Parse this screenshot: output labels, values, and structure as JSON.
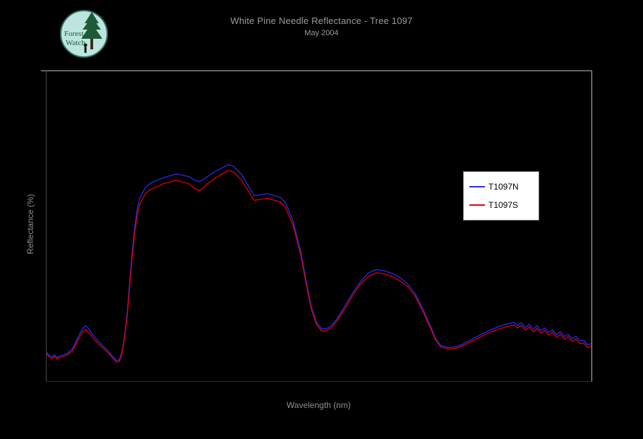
{
  "title": {
    "line1": "White Pine Needle Reflectance - Tree 1097",
    "line2": "May 2004"
  },
  "logo": {
    "line1": "Forest",
    "line2": "Watch"
  },
  "axes": {
    "x_label": "Wavelength (nm)",
    "y_label": "Reflectance (%)"
  },
  "legend": {
    "items": [
      {
        "label": "T1097N",
        "color": "#2a2aee"
      },
      {
        "label": "T1097S",
        "color": "#e00000"
      }
    ]
  },
  "colors": {
    "background": "#000000",
    "plot_border": "#b8b8b8",
    "legend_background": "#ffffff",
    "title_text": "#9c9c9c"
  },
  "chart_data": {
    "type": "line",
    "title": "White Pine Needle Reflectance - Tree 1097",
    "subtitle": "May 2004",
    "xlabel": "Wavelength (nm)",
    "ylabel": "Reflectance (%)",
    "xlim": [
      400,
      2500
    ],
    "ylim": [
      0,
      60
    ],
    "grid": false,
    "legend_position": "right-center",
    "x": [
      400,
      410,
      420,
      430,
      440,
      450,
      460,
      470,
      480,
      500,
      520,
      540,
      550,
      560,
      580,
      600,
      620,
      640,
      660,
      670,
      680,
      690,
      700,
      710,
      720,
      730,
      740,
      750,
      760,
      780,
      800,
      850,
      900,
      950,
      970,
      990,
      1020,
      1050,
      1100,
      1120,
      1150,
      1200,
      1250,
      1300,
      1320,
      1350,
      1380,
      1400,
      1420,
      1440,
      1460,
      1480,
      1500,
      1520,
      1550,
      1580,
      1610,
      1640,
      1670,
      1700,
      1730,
      1760,
      1790,
      1820,
      1850,
      1880,
      1900,
      1920,
      1950,
      1980,
      2000,
      2050,
      2100,
      2150,
      2200,
      2215,
      2230,
      2245,
      2260,
      2275,
      2290,
      2305,
      2320,
      2335,
      2350,
      2365,
      2380,
      2395,
      2410,
      2425,
      2440,
      2455,
      2470,
      2485,
      2500
    ],
    "series": [
      {
        "name": "T1097N",
        "color": "#2a2aee",
        "values": [
          5.6,
          5.0,
          4.7,
          5.1,
          4.6,
          4.9,
          5.0,
          5.2,
          5.4,
          6.3,
          8.4,
          10.3,
          10.7,
          10.3,
          8.9,
          7.7,
          6.7,
          5.7,
          4.5,
          4.0,
          4.1,
          5.6,
          8.6,
          13.0,
          19.0,
          25.0,
          30.0,
          33.5,
          35.5,
          37.4,
          38.3,
          39.4,
          40.1,
          39.6,
          38.9,
          38.6,
          39.6,
          40.6,
          41.9,
          41.6,
          40.1,
          35.9,
          36.3,
          35.6,
          34.6,
          31.0,
          25.0,
          19.5,
          14.5,
          11.4,
          10.1,
          10.2,
          10.9,
          12.1,
          14.6,
          17.1,
          19.3,
          20.9,
          21.6,
          21.4,
          20.9,
          20.1,
          18.9,
          17.0,
          14.0,
          10.6,
          8.2,
          6.9,
          6.5,
          6.7,
          7.1,
          8.4,
          9.7,
          10.7,
          11.4,
          10.8,
          11.3,
          10.4,
          11.0,
          10.1,
          10.7,
          9.8,
          10.3,
          9.4,
          10.0,
          9.0,
          9.6,
          8.6,
          9.1,
          8.2,
          8.7,
          7.8,
          7.9,
          7.0,
          7.3
        ]
      },
      {
        "name": "T1097S",
        "color": "#e00000",
        "values": [
          5.3,
          4.7,
          4.4,
          4.8,
          4.3,
          4.6,
          4.7,
          4.9,
          5.1,
          5.9,
          7.9,
          9.6,
          10.0,
          9.6,
          8.3,
          7.2,
          6.3,
          5.3,
          4.2,
          3.7,
          3.8,
          5.2,
          8.1,
          12.3,
          18.1,
          24.0,
          28.9,
          32.3,
          34.3,
          36.2,
          37.1,
          38.2,
          38.9,
          38.2,
          37.3,
          36.9,
          38.2,
          39.3,
          40.8,
          40.5,
          39.0,
          35.0,
          35.4,
          34.7,
          33.7,
          30.2,
          24.3,
          18.9,
          14.0,
          11.0,
          9.7,
          9.8,
          10.5,
          11.7,
          14.1,
          16.6,
          18.8,
          20.3,
          21.0,
          20.8,
          20.3,
          19.5,
          18.4,
          16.5,
          13.6,
          10.2,
          7.9,
          6.6,
          6.2,
          6.4,
          6.8,
          8.0,
          9.3,
          10.2,
          10.9,
          10.3,
          10.8,
          9.9,
          10.5,
          9.6,
          10.2,
          9.3,
          9.8,
          8.9,
          9.5,
          8.5,
          9.1,
          8.1,
          8.6,
          7.7,
          8.2,
          7.3,
          7.4,
          6.5,
          6.8
        ]
      }
    ]
  }
}
